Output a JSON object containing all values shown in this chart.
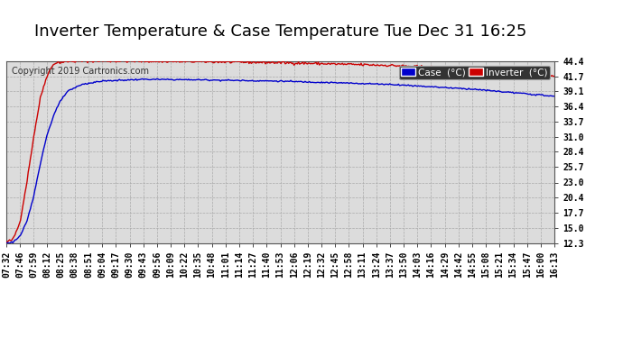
{
  "title": "Inverter Temperature & Case Temperature Tue Dec 31 16:25",
  "copyright": "Copyright 2019 Cartronics.com",
  "bg_color": "#ffffff",
  "plot_bg_color": "#dcdcdc",
  "grid_color": "#aaaaaa",
  "case_color": "#0000cc",
  "inverter_color": "#cc0000",
  "ylim": [
    12.3,
    44.4
  ],
  "yticks": [
    12.3,
    15.0,
    17.7,
    20.4,
    23.0,
    25.7,
    28.4,
    31.0,
    33.7,
    36.4,
    39.1,
    41.7,
    44.4
  ],
  "xtick_labels": [
    "07:32",
    "07:46",
    "07:59",
    "08:12",
    "08:25",
    "08:38",
    "08:51",
    "09:04",
    "09:17",
    "09:30",
    "09:43",
    "09:56",
    "10:09",
    "10:22",
    "10:35",
    "10:48",
    "11:01",
    "11:14",
    "11:27",
    "11:40",
    "11:53",
    "12:06",
    "12:19",
    "12:32",
    "12:45",
    "12:58",
    "13:11",
    "13:24",
    "13:37",
    "13:50",
    "14:03",
    "14:16",
    "14:29",
    "14:42",
    "14:55",
    "15:08",
    "15:21",
    "15:34",
    "15:47",
    "16:00",
    "16:13"
  ],
  "legend_case_label": "Case  (°C)",
  "legend_inverter_label": "Inverter  (°C)",
  "title_fontsize": 13,
  "tick_fontsize": 7,
  "copyright_fontsize": 7
}
